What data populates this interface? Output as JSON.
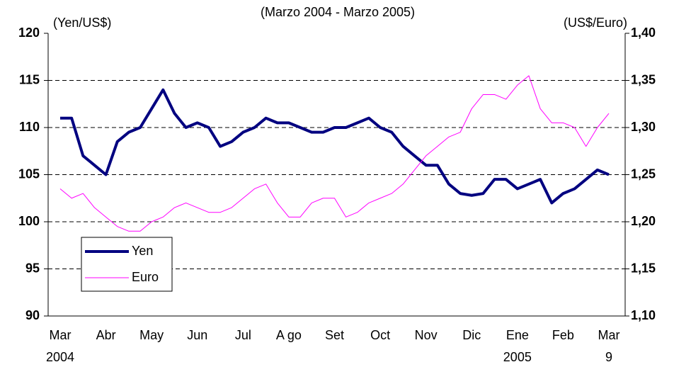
{
  "chart_data": {
    "type": "line",
    "subtitle": "(Marzo 2004 - Marzo 2005)",
    "y_label": "(Yen/US$)",
    "y2_label": "(US$/Euro)",
    "categories": [
      "Mar",
      null,
      null,
      null,
      "Abr",
      null,
      null,
      null,
      "May",
      null,
      null,
      null,
      "Jun",
      null,
      null,
      null,
      "Jul",
      null,
      null,
      null,
      "A go",
      null,
      null,
      null,
      "Set",
      null,
      null,
      null,
      "Oct",
      null,
      null,
      null,
      "Nov",
      null,
      null,
      null,
      "Dic",
      null,
      null,
      null,
      "Ene",
      null,
      null,
      null,
      "Feb",
      null,
      null,
      null,
      "Mar"
    ],
    "category_years": [
      "2004",
      null,
      null,
      null,
      null,
      null,
      null,
      null,
      null,
      null,
      null,
      null,
      null,
      null,
      null,
      null,
      null,
      null,
      null,
      null,
      null,
      null,
      null,
      null,
      null,
      null,
      null,
      null,
      null,
      null,
      null,
      null,
      null,
      null,
      null,
      null,
      null,
      null,
      null,
      null,
      "2005",
      null,
      null,
      null,
      null,
      null,
      null,
      null,
      "9"
    ],
    "series": [
      {
        "name": "Yen",
        "color": "#000080",
        "axis": "y",
        "values": [
          111,
          111,
          107,
          106,
          105,
          108.5,
          109.5,
          110,
          112,
          114,
          111.5,
          110,
          110.5,
          110,
          108,
          108.5,
          109.5,
          110,
          111,
          110.5,
          110.5,
          110,
          109.5,
          109.5,
          110,
          110,
          110.5,
          111,
          110,
          109.5,
          108,
          107,
          106,
          106,
          104,
          103,
          102.8,
          103,
          104.5,
          104.5,
          103.5,
          104,
          104.5,
          102,
          103,
          103.5,
          104.5,
          105.5,
          105
        ]
      },
      {
        "name": "Euro",
        "color": "#ff00ff",
        "axis": "y2",
        "values": [
          1.235,
          1.225,
          1.23,
          1.215,
          1.205,
          1.195,
          1.19,
          1.19,
          1.2,
          1.205,
          1.215,
          1.22,
          1.215,
          1.21,
          1.21,
          1.215,
          1.225,
          1.235,
          1.24,
          1.22,
          1.205,
          1.205,
          1.22,
          1.225,
          1.225,
          1.205,
          1.21,
          1.22,
          1.225,
          1.23,
          1.24,
          1.255,
          1.27,
          1.28,
          1.29,
          1.295,
          1.32,
          1.335,
          1.335,
          1.33,
          1.345,
          1.355,
          1.32,
          1.305,
          1.305,
          1.3,
          1.28,
          1.3,
          1.315
        ]
      }
    ],
    "ylim": [
      90,
      120
    ],
    "yticks": [
      90,
      95,
      100,
      105,
      110,
      115,
      120
    ],
    "y2lim": [
      1.1,
      1.4
    ],
    "y2ticks": [
      {
        "value": 1.1,
        "label": "1,10"
      },
      {
        "value": 1.15,
        "label": "1,15"
      },
      {
        "value": 1.2,
        "label": "1,20"
      },
      {
        "value": 1.25,
        "label": "1,25"
      },
      {
        "value": 1.3,
        "label": "1,30"
      },
      {
        "value": 1.35,
        "label": "1,35"
      },
      {
        "value": 1.4,
        "label": "1,40"
      }
    ],
    "grid": true,
    "legend": "lower-left"
  }
}
